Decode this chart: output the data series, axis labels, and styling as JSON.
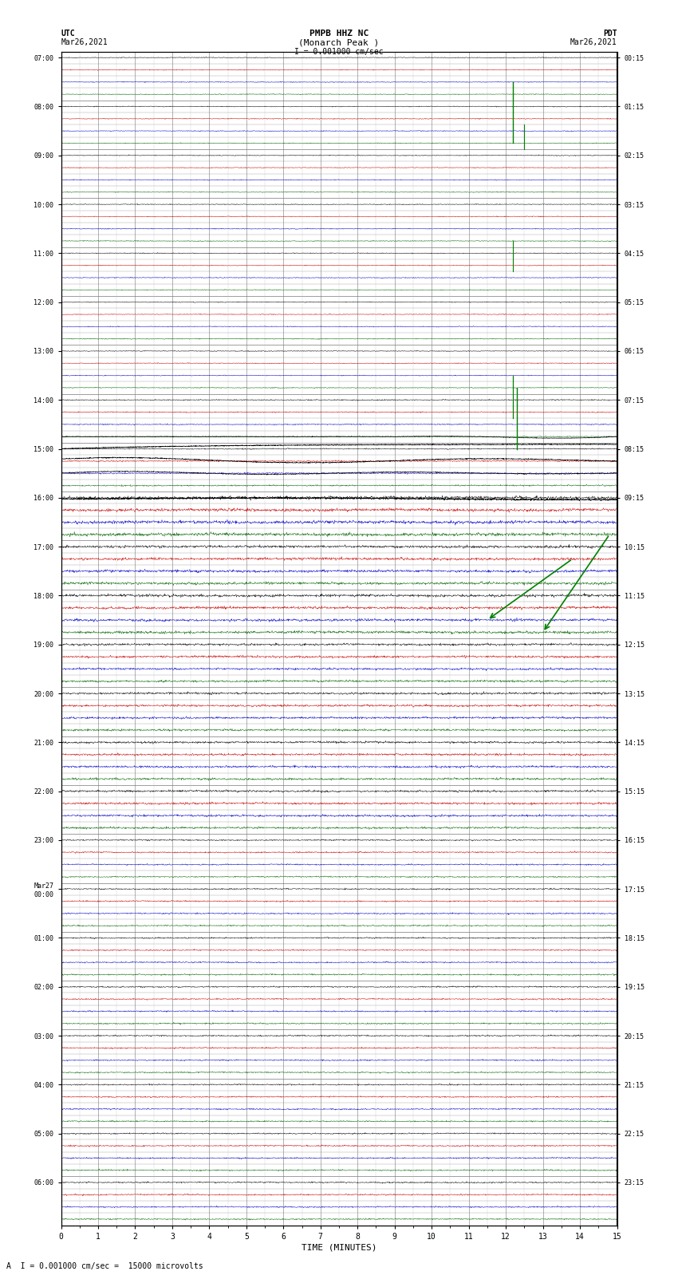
{
  "title_line1": "PMPB HHZ NC",
  "title_line2": "(Monarch Peak )",
  "scale_label": "I = 0.001000 cm/sec",
  "left_timezone": "UTC",
  "right_timezone": "PDT",
  "left_date": "Mar26,2021",
  "right_date": "Mar26,2021",
  "xlabel": "TIME (MINUTES)",
  "bottom_label": "A  I = 0.001000 cm/sec =  15000 microvolts",
  "x_ticks": [
    0,
    1,
    2,
    3,
    4,
    5,
    6,
    7,
    8,
    9,
    10,
    11,
    12,
    13,
    14,
    15
  ],
  "background_color": "#ffffff",
  "trace_color_black": "#000000",
  "trace_color_blue": "#0000cc",
  "trace_color_red": "#cc0000",
  "trace_color_green": "#006600",
  "fig_width": 8.5,
  "fig_height": 16.13,
  "left_labels": [
    "07:00",
    "08:00",
    "09:00",
    "10:00",
    "11:00",
    "12:00",
    "13:00",
    "14:00",
    "15:00",
    "16:00",
    "17:00",
    "18:00",
    "19:00",
    "20:00",
    "21:00",
    "22:00",
    "23:00",
    "Mar27\n00:00",
    "01:00",
    "02:00",
    "03:00",
    "04:00",
    "05:00",
    "06:00"
  ],
  "right_labels": [
    "00:15",
    "01:15",
    "02:15",
    "03:15",
    "04:15",
    "05:15",
    "06:15",
    "07:15",
    "08:15",
    "09:15",
    "10:15",
    "11:15",
    "12:15",
    "13:15",
    "14:15",
    "15:15",
    "16:15",
    "17:15",
    "18:15",
    "19:15",
    "20:15",
    "21:15",
    "22:15",
    "23:15"
  ]
}
